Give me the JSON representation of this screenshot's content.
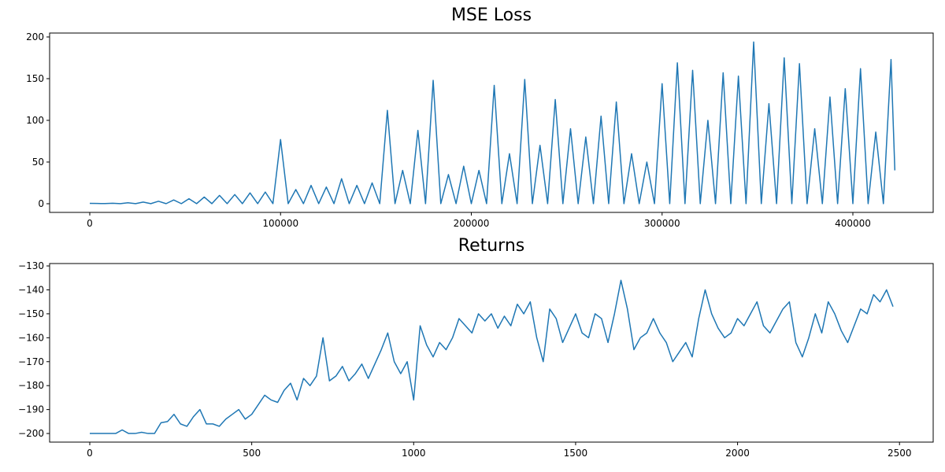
{
  "chart_data": [
    {
      "type": "line",
      "title": "MSE Loss",
      "color": "#1f77b4",
      "x": [
        0,
        4000,
        8000,
        12000,
        16000,
        20000,
        24000,
        28000,
        32000,
        36000,
        40000,
        44000,
        48000,
        52000,
        56000,
        60000,
        64000,
        68000,
        72000,
        76000,
        80000,
        84000,
        88000,
        92000,
        96000,
        100000,
        104000,
        108000,
        112000,
        116000,
        120000,
        124000,
        128000,
        132000,
        136000,
        140000,
        144000,
        148000,
        152000,
        156000,
        160000,
        164000,
        168000,
        172000,
        176000,
        180000,
        184000,
        188000,
        192000,
        196000,
        200000,
        204000,
        208000,
        212000,
        216000,
        220000,
        224000,
        228000,
        232000,
        236000,
        240000,
        244000,
        248000,
        252000,
        256000,
        260000,
        264000,
        268000,
        272000,
        276000,
        280000,
        284000,
        288000,
        292000,
        296000,
        300000,
        304000,
        308000,
        312000,
        316000,
        320000,
        324000,
        328000,
        332000,
        336000,
        340000,
        344000,
        348000,
        352000,
        356000,
        360000,
        364000,
        368000,
        372000,
        376000,
        380000,
        384000,
        388000,
        392000,
        396000,
        400000,
        404000,
        408000,
        412000,
        416000,
        420000,
        422000
      ],
      "values": [
        0.5,
        0.3,
        0.2,
        0.6,
        0.1,
        1.2,
        0.1,
        2,
        0.1,
        3,
        0.1,
        4.5,
        0.1,
        6,
        0.1,
        8,
        0.1,
        10,
        0.1,
        11,
        0.1,
        13,
        0.1,
        14,
        0.1,
        77,
        0.1,
        17,
        0.1,
        22,
        0.1,
        20,
        0.1,
        30,
        0.1,
        22,
        0.1,
        25,
        0.1,
        112,
        0.1,
        40,
        0.1,
        88,
        0.1,
        148,
        0.1,
        35,
        0.1,
        45,
        0.1,
        40,
        0.1,
        142,
        0.1,
        60,
        0.1,
        149,
        0.1,
        70,
        0.1,
        125,
        0.1,
        90,
        0.1,
        80,
        0.1,
        105,
        0.1,
        122,
        0.1,
        60,
        0.1,
        50,
        0.1,
        144,
        0.1,
        169,
        0.1,
        160,
        0.1,
        100,
        0.1,
        157,
        0.1,
        153,
        0.1,
        194,
        0.1,
        120,
        0.1,
        175,
        0.1,
        168,
        0.1,
        90,
        0.1,
        128,
        0.1,
        138,
        0.1,
        162,
        0.1,
        86,
        0.1,
        173,
        40
      ],
      "xlim": [
        -21050,
        442100
      ],
      "ylim": [
        -10.4,
        204.7
      ],
      "xticks": [
        0,
        100000,
        200000,
        300000,
        400000
      ],
      "yticks": [
        0,
        50,
        100,
        150,
        200
      ]
    },
    {
      "type": "line",
      "title": "Returns",
      "color": "#1f77b4",
      "x": [
        0,
        20,
        40,
        60,
        80,
        100,
        120,
        140,
        160,
        180,
        200,
        220,
        240,
        260,
        280,
        300,
        320,
        340,
        360,
        380,
        400,
        420,
        440,
        460,
        480,
        500,
        520,
        540,
        560,
        580,
        600,
        620,
        640,
        660,
        680,
        700,
        720,
        740,
        760,
        780,
        800,
        820,
        840,
        860,
        880,
        900,
        920,
        940,
        960,
        980,
        1000,
        1020,
        1040,
        1060,
        1080,
        1100,
        1120,
        1140,
        1160,
        1180,
        1200,
        1220,
        1240,
        1260,
        1280,
        1300,
        1320,
        1340,
        1360,
        1380,
        1400,
        1420,
        1440,
        1460,
        1480,
        1500,
        1520,
        1540,
        1560,
        1580,
        1600,
        1620,
        1640,
        1660,
        1680,
        1700,
        1720,
        1740,
        1760,
        1780,
        1800,
        1820,
        1840,
        1860,
        1880,
        1900,
        1920,
        1940,
        1960,
        1980,
        2000,
        2020,
        2040,
        2060,
        2080,
        2100,
        2120,
        2140,
        2160,
        2180,
        2200,
        2220,
        2240,
        2260,
        2280,
        2300,
        2320,
        2340,
        2360,
        2380,
        2400,
        2420,
        2440,
        2460,
        2480
      ],
      "values": [
        -200,
        -200,
        -200,
        -200,
        -200,
        -198.5,
        -200,
        -200,
        -199.5,
        -200,
        -200,
        -195.5,
        -195,
        -192,
        -196,
        -197,
        -193,
        -190,
        -196,
        -196,
        -197,
        -194,
        -192,
        -190,
        -194,
        -192,
        -188,
        -184,
        -186,
        -187,
        -182,
        -179,
        -186,
        -177,
        -180,
        -176,
        -160,
        -178,
        -176,
        -172,
        -178,
        -175,
        -171,
        -177,
        -171,
        -165,
        -158,
        -170,
        -175,
        -170,
        -186,
        -155,
        -163,
        -168,
        -162,
        -165,
        -160,
        -152,
        -155,
        -158,
        -150,
        -153,
        -150,
        -156,
        -151,
        -155,
        -146,
        -150,
        -145,
        -160,
        -170,
        -148,
        -152,
        -162,
        -156,
        -150,
        -158,
        -160,
        -150,
        -152,
        -162,
        -150,
        -136,
        -148,
        -165,
        -160,
        -158,
        -152,
        -158,
        -162,
        -170,
        -166,
        -162,
        -168,
        -152,
        -140,
        -150,
        -156,
        -160,
        -158,
        -152,
        -155,
        -150,
        -145,
        -155,
        -158,
        -153,
        -148,
        -145,
        -162,
        -168,
        -160,
        -150,
        -158,
        -145,
        -150,
        -157,
        -162,
        -155,
        -148,
        -150,
        -142,
        -145,
        -140,
        -147
      ],
      "xlim": [
        -124,
        2604
      ],
      "ylim": [
        -203.6,
        -129.0
      ],
      "xticks": [
        0,
        500,
        1000,
        1500,
        2000,
        2500
      ],
      "yticks": [
        {
          "value": -200,
          "label": "−200"
        },
        {
          "value": -190,
          "label": "−190"
        },
        {
          "value": -180,
          "label": "−180"
        },
        {
          "value": -170,
          "label": "−170"
        },
        {
          "value": -160,
          "label": "−160"
        },
        {
          "value": -150,
          "label": "−150"
        },
        {
          "value": -140,
          "label": "−140"
        },
        {
          "value": -130,
          "label": "−130"
        }
      ]
    }
  ]
}
